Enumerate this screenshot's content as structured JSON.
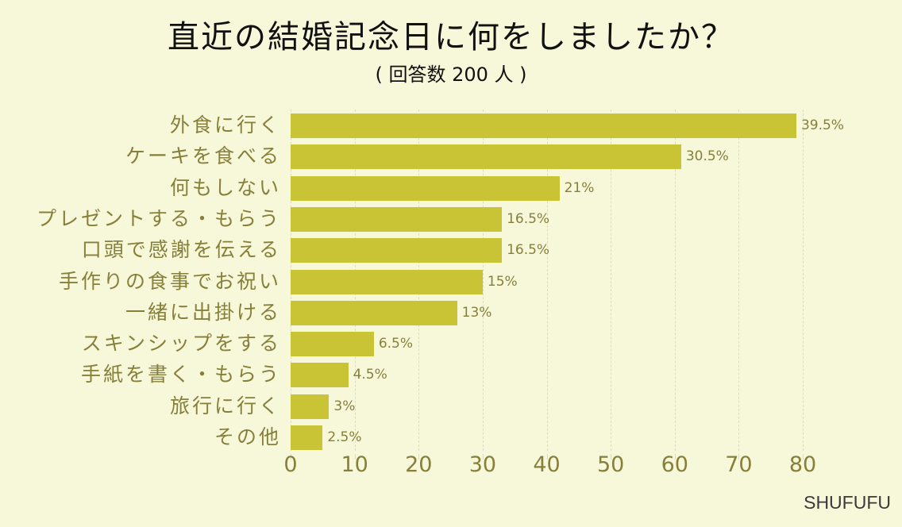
{
  "header": {
    "title": "直近の結婚記念日に何をしましたか？",
    "subtitle": "( 回答数 200 人 )"
  },
  "brand": "SHUFUFU",
  "colors": {
    "background": "#f7f7d9",
    "bar": "#c9c436",
    "text": "#86803a"
  },
  "chart_data": {
    "type": "bar",
    "orientation": "horizontal",
    "title": "直近の結婚記念日に何をしましたか？",
    "subtitle": "( 回答数 200 人 )",
    "xlabel": "",
    "ylabel": "",
    "xlim": [
      0,
      80
    ],
    "xticks": [
      0,
      10,
      20,
      30,
      40,
      50,
      60,
      70,
      80
    ],
    "grid": true,
    "categories": [
      "外食に行く",
      "ケーキを食べる",
      "何もしない",
      "プレゼントする・もらう",
      "口頭で感謝を伝える",
      "手作りの食事でお祝い",
      "一緒に出掛ける",
      "スキンシップをする",
      "手紙を書く・もらう",
      "旅行に行く",
      "その他"
    ],
    "values": [
      39.5,
      30.5,
      21,
      16.5,
      16.5,
      15,
      13,
      6.5,
      4.5,
      3,
      2.5
    ],
    "bar_scale_values": [
      79,
      61,
      42,
      33,
      33,
      30,
      26,
      13,
      9,
      6,
      5
    ],
    "value_labels": [
      "39.5%",
      "30.5%",
      "21%",
      "16.5%",
      "16.5%",
      "15%",
      "13%",
      "6.5%",
      "4.5%",
      "3%",
      "2.5%"
    ]
  }
}
